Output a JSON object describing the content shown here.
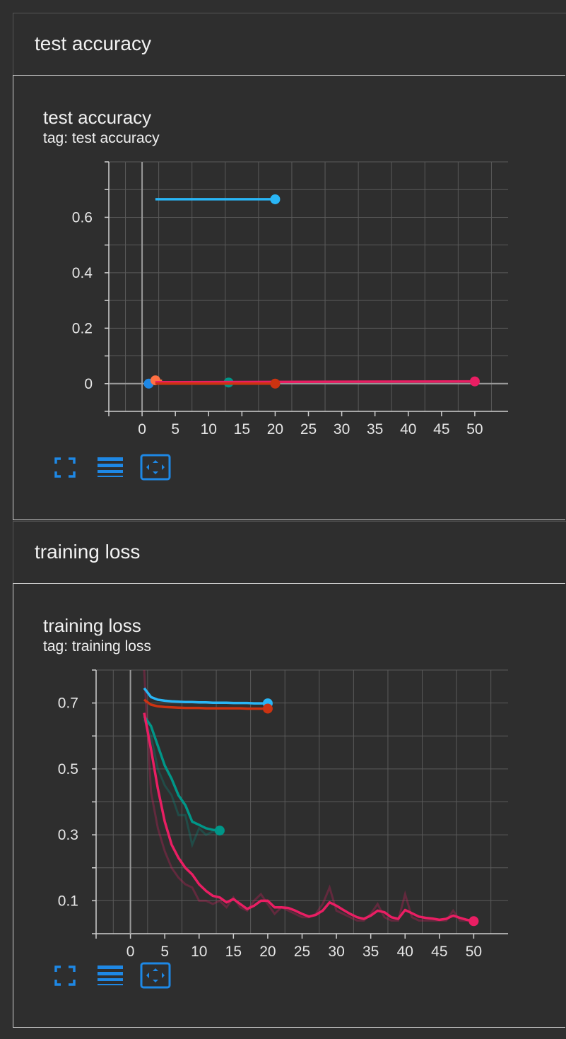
{
  "groups": [
    {
      "header": "test accuracy",
      "card_title": "test accuracy",
      "card_tag": "tag: test accuracy"
    },
    {
      "header": "training loss",
      "card_title": "training loss",
      "card_tag": "tag: training loss"
    }
  ],
  "controls": {
    "fullscreen_icon": "fullscreen-icon",
    "toggle_log_icon": "lines-icon",
    "fit_domain_icon": "fit-domain-icon"
  },
  "colors": {
    "grid": "#5a5a5a",
    "zero_line": "#9a9a9a",
    "accent_blue": "#1e88e5"
  },
  "chart_data": [
    {
      "type": "line",
      "x_ticks": [
        0,
        5,
        10,
        15,
        20,
        25,
        30,
        35,
        40,
        45,
        50
      ],
      "y_ticks": [
        0,
        0.2,
        0.4,
        0.6
      ],
      "y_tick_labels": [
        "0",
        "0.2",
        "0.4",
        "0.6"
      ],
      "xlim": [
        -5,
        55
      ],
      "ylim": [
        -0.1,
        0.8
      ],
      "series": [
        {
          "color": "#29b6f6",
          "x": [
            2,
            20
          ],
          "y": [
            0.665,
            0.665
          ],
          "end_dot": true
        },
        {
          "color": "#1e88e5",
          "x": [
            1,
            2
          ],
          "y": [
            0.0,
            0.005
          ],
          "end_dot": false,
          "start_dot": true
        },
        {
          "color": "#ff7043",
          "x": [
            2,
            3
          ],
          "y": [
            0.012,
            0.01
          ],
          "end_dot": false,
          "start_dot": true
        },
        {
          "color": "#009688",
          "x": [
            2,
            13
          ],
          "y": [
            0.004,
            0.004
          ],
          "end_dot": true
        },
        {
          "color": "#e91e63",
          "x": [
            2,
            50
          ],
          "y": [
            0.005,
            0.008
          ],
          "end_dot": true
        },
        {
          "color": "#cc3311",
          "x": [
            2,
            20
          ],
          "y": [
            0.0,
            0.0
          ],
          "end_dot": true
        }
      ]
    },
    {
      "type": "line",
      "x_ticks": [
        0,
        5,
        10,
        15,
        20,
        25,
        30,
        35,
        40,
        45,
        50
      ],
      "y_ticks": [
        0.1,
        0.3,
        0.5,
        0.7
      ],
      "y_tick_labels": [
        "0.1",
        "0.3",
        "0.5",
        "0.7"
      ],
      "xlim": [
        -5,
        55
      ],
      "ylim": [
        0.0,
        0.8
      ],
      "series": [
        {
          "color": "#29b6f6",
          "x": [
            2,
            3,
            4,
            5,
            6,
            7,
            8,
            9,
            10,
            11,
            12,
            13,
            14,
            15,
            16,
            17,
            18,
            19,
            20
          ],
          "y": [
            0.745,
            0.718,
            0.71,
            0.707,
            0.705,
            0.704,
            0.703,
            0.703,
            0.702,
            0.702,
            0.701,
            0.701,
            0.701,
            0.7,
            0.7,
            0.7,
            0.699,
            0.699,
            0.699
          ],
          "end_dot": true
        },
        {
          "color": "#cc3311",
          "x": [
            2,
            3,
            4,
            5,
            6,
            7,
            8,
            9,
            10,
            11,
            12,
            13,
            14,
            15,
            16,
            17,
            18,
            19,
            20
          ],
          "y": [
            0.71,
            0.695,
            0.69,
            0.688,
            0.687,
            0.686,
            0.685,
            0.685,
            0.685,
            0.684,
            0.684,
            0.684,
            0.684,
            0.684,
            0.684,
            0.683,
            0.683,
            0.683,
            0.683
          ],
          "end_dot": true
        },
        {
          "color": "#009688",
          "x": [
            2,
            3,
            4,
            5,
            6,
            7,
            8,
            9,
            10,
            11,
            12,
            13
          ],
          "y": [
            0.66,
            0.63,
            0.57,
            0.51,
            0.47,
            0.42,
            0.39,
            0.34,
            0.33,
            0.32,
            0.315,
            0.313
          ],
          "end_dot": true
        },
        {
          "color": "#e91e63",
          "x": [
            2,
            3,
            4,
            5,
            6,
            7,
            8,
            9,
            10,
            11,
            12,
            13,
            14,
            15,
            16,
            17,
            18,
            19,
            20,
            21,
            22,
            23,
            24,
            25,
            26,
            27,
            28,
            29,
            30,
            31,
            32,
            33,
            34,
            35,
            36,
            37,
            38,
            39,
            40,
            41,
            42,
            43,
            44,
            45,
            46,
            47,
            48,
            49,
            50
          ],
          "y": [
            0.67,
            0.56,
            0.44,
            0.34,
            0.27,
            0.23,
            0.2,
            0.18,
            0.15,
            0.13,
            0.115,
            0.11,
            0.095,
            0.105,
            0.09,
            0.075,
            0.085,
            0.1,
            0.1,
            0.08,
            0.08,
            0.078,
            0.07,
            0.06,
            0.052,
            0.057,
            0.07,
            0.095,
            0.085,
            0.072,
            0.06,
            0.05,
            0.045,
            0.055,
            0.07,
            0.065,
            0.05,
            0.045,
            0.072,
            0.062,
            0.052,
            0.048,
            0.046,
            0.042,
            0.045,
            0.055,
            0.048,
            0.042,
            0.038
          ],
          "end_dot": true
        }
      ],
      "raw_series": [
        {
          "color": "#e91e63",
          "x": [
            2,
            3,
            4,
            5,
            6,
            7,
            8,
            9,
            10,
            11,
            12,
            13,
            14,
            15,
            16,
            17,
            18,
            19,
            20,
            21,
            22,
            23,
            24,
            25,
            26,
            27,
            28,
            29,
            30,
            31,
            32,
            33,
            34,
            35,
            36,
            37,
            38,
            39,
            40,
            41,
            42,
            43,
            44,
            45,
            46,
            47,
            48,
            49,
            50
          ],
          "y": [
            0.8,
            0.43,
            0.32,
            0.25,
            0.2,
            0.17,
            0.15,
            0.14,
            0.1,
            0.1,
            0.09,
            0.1,
            0.08,
            0.11,
            0.08,
            0.07,
            0.1,
            0.12,
            0.09,
            0.06,
            0.08,
            0.07,
            0.06,
            0.05,
            0.05,
            0.06,
            0.09,
            0.14,
            0.07,
            0.06,
            0.05,
            0.04,
            0.04,
            0.06,
            0.09,
            0.05,
            0.04,
            0.04,
            0.12,
            0.05,
            0.04,
            0.04,
            0.04,
            0.04,
            0.04,
            0.07,
            0.04,
            0.04,
            0.035
          ]
        },
        {
          "color": "#009688",
          "x": [
            2,
            3,
            4,
            5,
            6,
            7,
            8,
            9,
            10,
            11,
            12,
            13
          ],
          "y": [
            0.65,
            0.6,
            0.5,
            0.45,
            0.42,
            0.36,
            0.36,
            0.27,
            0.32,
            0.3,
            0.31,
            0.31
          ]
        }
      ]
    }
  ]
}
